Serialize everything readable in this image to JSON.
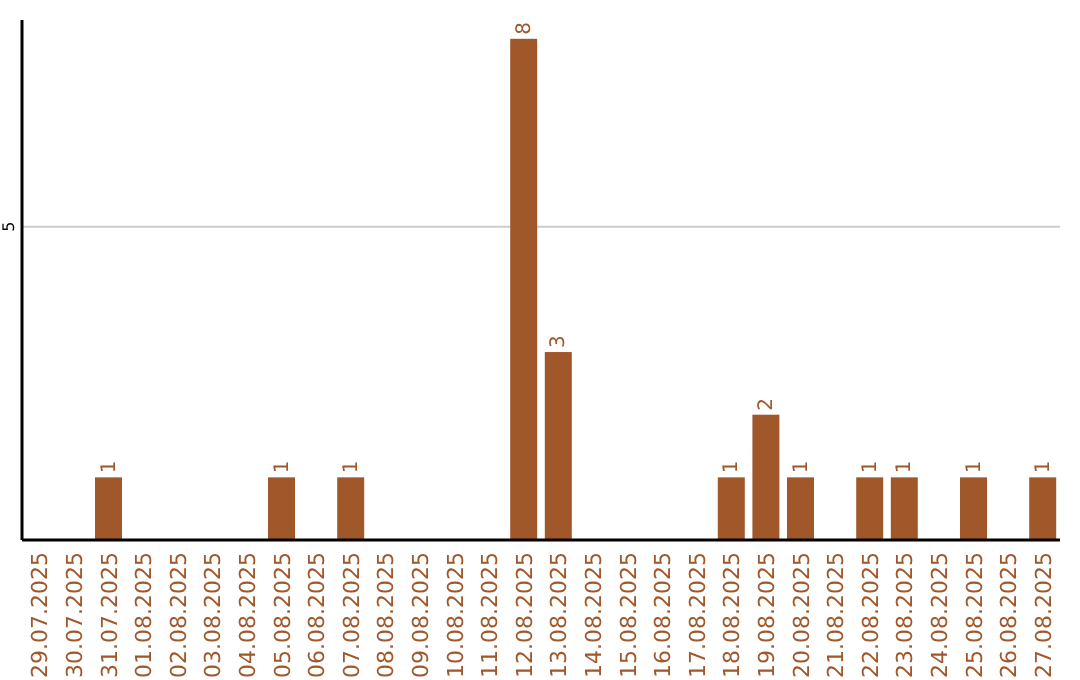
{
  "chart_data": {
    "type": "bar",
    "categories": [
      "29.07.2025",
      "30.07.2025",
      "31.07.2025",
      "01.08.2025",
      "02.08.2025",
      "03.08.2025",
      "04.08.2025",
      "05.08.2025",
      "06.08.2025",
      "07.08.2025",
      "08.08.2025",
      "09.08.2025",
      "10.08.2025",
      "11.08.2025",
      "12.08.2025",
      "13.08.2025",
      "14.08.2025",
      "15.08.2025",
      "16.08.2025",
      "17.08.2025",
      "18.08.2025",
      "19.08.2025",
      "20.08.2025",
      "21.08.2025",
      "22.08.2025",
      "23.08.2025",
      "24.08.2025",
      "25.08.2025",
      "26.08.2025",
      "27.08.2025"
    ],
    "values": [
      0,
      0,
      1,
      0,
      0,
      0,
      0,
      1,
      0,
      1,
      0,
      0,
      0,
      0,
      8,
      3,
      0,
      0,
      0,
      0,
      1,
      2,
      1,
      0,
      1,
      1,
      0,
      1,
      0,
      1
    ],
    "color": "#a0572a",
    "ylim": [
      0,
      8.3
    ],
    "yticks": [
      5
    ],
    "grid": "y",
    "value_labels": [
      null,
      null,
      "1",
      null,
      null,
      null,
      null,
      "1",
      null,
      "1",
      null,
      null,
      null,
      null,
      "8",
      "3",
      null,
      null,
      null,
      null,
      "1",
      "2",
      "1",
      null,
      "1",
      "1",
      null,
      "1",
      null,
      "1"
    ]
  }
}
